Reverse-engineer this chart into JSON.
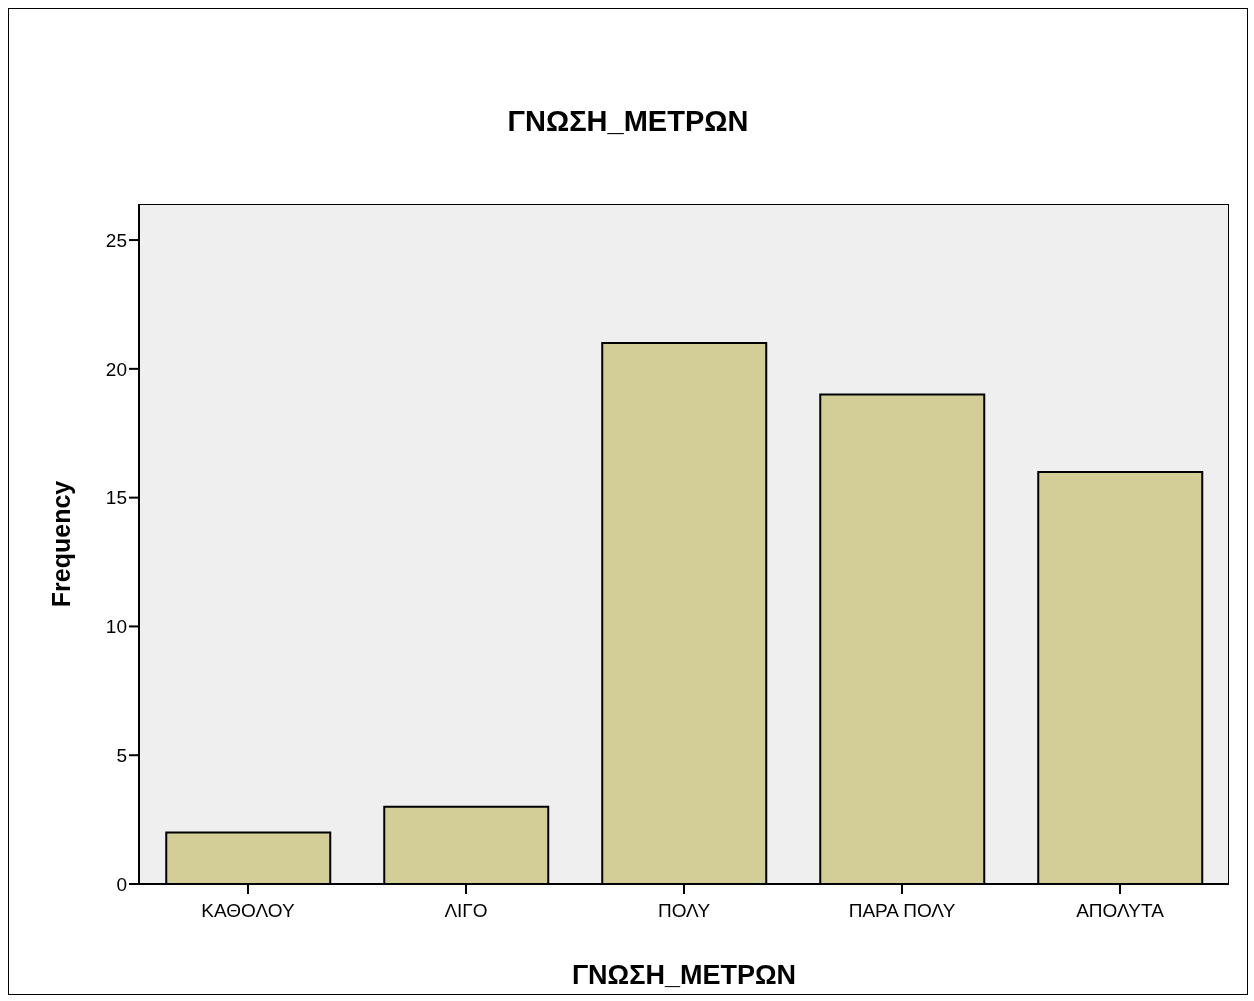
{
  "chart_data": {
    "type": "bar",
    "title": "ΓΝΩΣΗ_ΜΕΤΡΩΝ",
    "xlabel": "ΓΝΩΣΗ_ΜΕΤΡΩΝ",
    "ylabel": "Frequency",
    "categories": [
      "ΚΑΘΟΛΟΥ",
      "ΛΙΓΟ",
      "ΠΟΛΥ",
      "ΠΑΡΑ ΠΟΛΥ",
      "ΑΠΟΛΥΤΑ"
    ],
    "values": [
      2,
      3,
      21,
      19,
      16
    ],
    "color": "#d3ce97",
    "ylim": [
      0,
      26.4
    ],
    "yticks": [
      0,
      5,
      10,
      15,
      20,
      25
    ],
    "grid": false
  }
}
